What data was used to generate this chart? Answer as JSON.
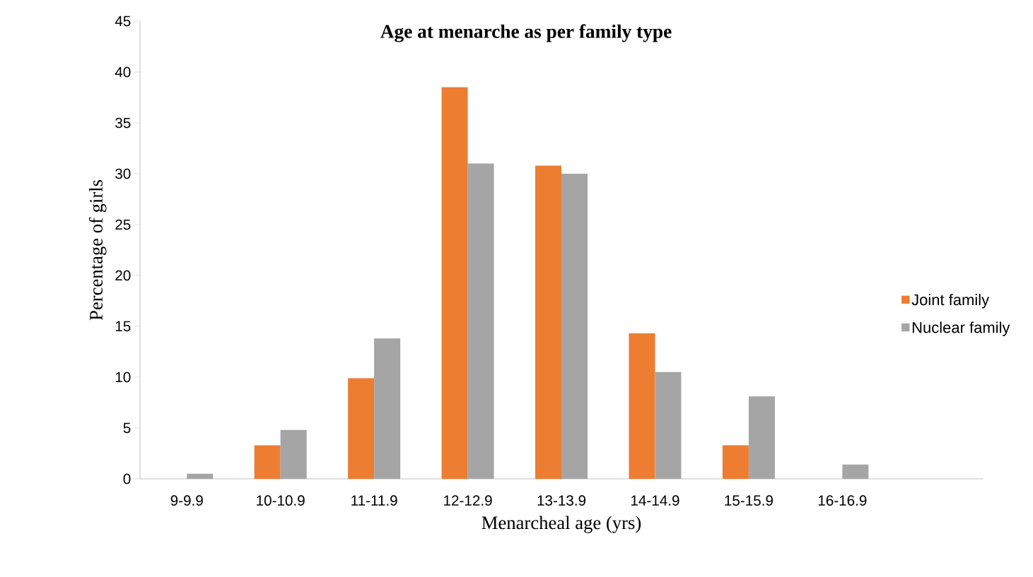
{
  "chart_data": {
    "type": "bar",
    "title": "Age at menarche as per family type",
    "xlabel": "Menarcheal age (yrs)",
    "ylabel": "Percentage of girls",
    "categories": [
      "9-9.9",
      "10-10.9",
      "11-11.9",
      "12-12.9",
      "13-13.9",
      "14-14.9",
      "15-15.9",
      "16-16.9",
      null
    ],
    "series": [
      {
        "name": "Joint family",
        "color": "#ed7d31",
        "values": [
          0,
          3.3,
          9.9,
          38.5,
          30.8,
          14.3,
          3.3,
          0,
          null
        ]
      },
      {
        "name": "Nuclear family",
        "color": "#a5a5a5",
        "values": [
          0.5,
          4.8,
          13.8,
          31,
          30,
          10.5,
          8.1,
          1.4,
          null
        ]
      }
    ],
    "ylim": [
      0,
      45
    ],
    "yticks": [
      0,
      5,
      10,
      15,
      20,
      25,
      30,
      35,
      40,
      45
    ],
    "grid": false,
    "legend": "right"
  }
}
